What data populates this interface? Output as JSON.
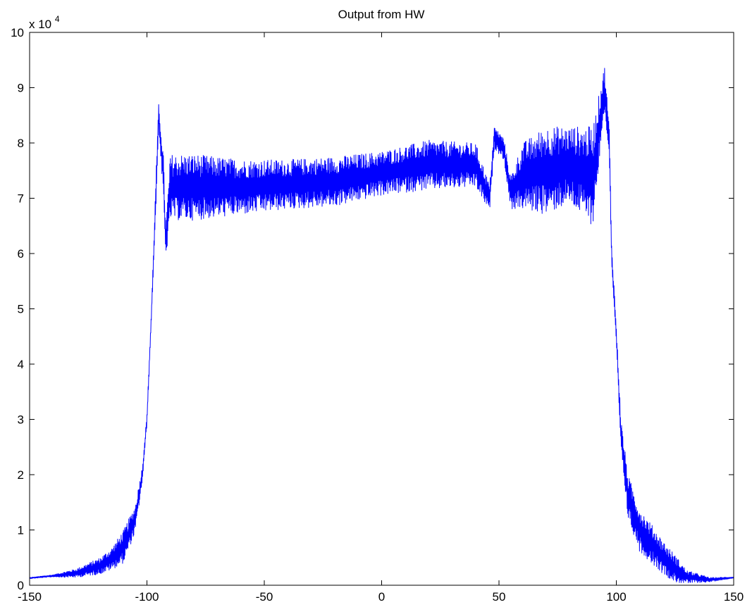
{
  "chart_data": {
    "type": "line",
    "title": "Output from HW",
    "xlabel": "",
    "ylabel": "",
    "y_multiplier": {
      "base": "x 10",
      "exponent": "4"
    },
    "xlim": [
      -150,
      150
    ],
    "ylim": [
      0,
      10
    ],
    "x_ticks": [
      "-150",
      "-100",
      "-50",
      "0",
      "50",
      "100",
      "150"
    ],
    "y_ticks": [
      "0",
      "1",
      "2",
      "3",
      "4",
      "5",
      "6",
      "7",
      "8",
      "9",
      "10"
    ],
    "grid": false,
    "legend": "none",
    "line_color": "#0000ff",
    "series": [
      {
        "noisy": true,
        "envelope": [
          {
            "x": -150,
            "mean": 0.13,
            "amp": 0.01
          },
          {
            "x": -140,
            "mean": 0.17,
            "amp": 0.02
          },
          {
            "x": -130,
            "mean": 0.22,
            "amp": 0.08
          },
          {
            "x": -120,
            "mean": 0.35,
            "amp": 0.15
          },
          {
            "x": -115,
            "mean": 0.48,
            "amp": 0.2
          },
          {
            "x": -110,
            "mean": 0.7,
            "amp": 0.3
          },
          {
            "x": -105,
            "mean": 1.2,
            "amp": 0.25
          },
          {
            "x": -102,
            "mean": 2.0,
            "amp": 0.15
          },
          {
            "x": -100,
            "mean": 3.0,
            "amp": 0.1
          },
          {
            "x": -98,
            "mean": 5.0,
            "amp": 0.1
          },
          {
            "x": -96,
            "mean": 7.3,
            "amp": 0.3
          },
          {
            "x": -95,
            "mean": 8.5,
            "amp": 0.2
          },
          {
            "x": -93,
            "mean": 7.4,
            "amp": 0.4
          },
          {
            "x": -92,
            "mean": 6.2,
            "amp": 0.3
          },
          {
            "x": -90,
            "mean": 7.2,
            "amp": 0.6
          },
          {
            "x": -80,
            "mean": 7.2,
            "amp": 0.6
          },
          {
            "x": -60,
            "mean": 7.2,
            "amp": 0.5
          },
          {
            "x": -40,
            "mean": 7.25,
            "amp": 0.45
          },
          {
            "x": -20,
            "mean": 7.3,
            "amp": 0.45
          },
          {
            "x": 0,
            "mean": 7.45,
            "amp": 0.4
          },
          {
            "x": 20,
            "mean": 7.6,
            "amp": 0.45
          },
          {
            "x": 40,
            "mean": 7.6,
            "amp": 0.4
          },
          {
            "x": 46,
            "mean": 7.0,
            "amp": 0.25
          },
          {
            "x": 48,
            "mean": 8.1,
            "amp": 0.2
          },
          {
            "x": 52,
            "mean": 7.9,
            "amp": 0.2
          },
          {
            "x": 55,
            "mean": 7.1,
            "amp": 0.3
          },
          {
            "x": 60,
            "mean": 7.4,
            "amp": 0.6
          },
          {
            "x": 70,
            "mean": 7.5,
            "amp": 0.8
          },
          {
            "x": 80,
            "mean": 7.6,
            "amp": 0.7
          },
          {
            "x": 90,
            "mean": 7.4,
            "amp": 0.9
          },
          {
            "x": 95,
            "mean": 9.0,
            "amp": 0.4
          },
          {
            "x": 97,
            "mean": 8.0,
            "amp": 0.3
          },
          {
            "x": 98,
            "mean": 6.0,
            "amp": 0.2
          },
          {
            "x": 100,
            "mean": 4.5,
            "amp": 0.2
          },
          {
            "x": 102,
            "mean": 2.7,
            "amp": 0.3
          },
          {
            "x": 105,
            "mean": 1.6,
            "amp": 0.4
          },
          {
            "x": 110,
            "mean": 1.0,
            "amp": 0.4
          },
          {
            "x": 115,
            "mean": 0.75,
            "amp": 0.35
          },
          {
            "x": 120,
            "mean": 0.5,
            "amp": 0.3
          },
          {
            "x": 125,
            "mean": 0.3,
            "amp": 0.25
          },
          {
            "x": 130,
            "mean": 0.15,
            "amp": 0.12
          },
          {
            "x": 140,
            "mean": 0.1,
            "amp": 0.04
          },
          {
            "x": 150,
            "mean": 0.14,
            "amp": 0.01
          }
        ]
      }
    ]
  }
}
